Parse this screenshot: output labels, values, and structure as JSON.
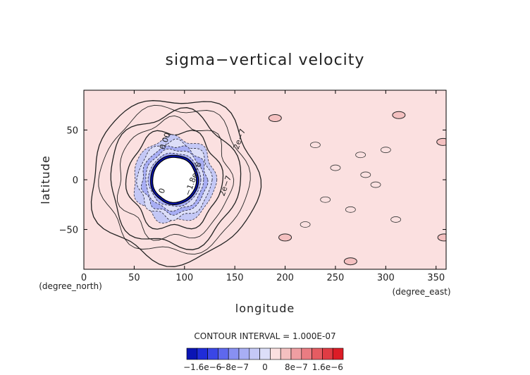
{
  "chart_data": {
    "type": "heatmap",
    "title": "sigma−vertical velocity",
    "xlabel": "longitude",
    "ylabel": "latitude",
    "xunit": "(degree_east)",
    "yunit": "(degree_north)",
    "xlim": [
      0,
      360
    ],
    "ylim": [
      -90,
      90
    ],
    "xticks": [
      0,
      50,
      100,
      150,
      200,
      250,
      300,
      350
    ],
    "yticks": [
      -50,
      0,
      50
    ],
    "grid": false,
    "contour_interval_text": "CONTOUR INTERVAL = 1.000E-07",
    "contour_labels": [
      "2e−7",
      "2e−7",
      "0.00",
      "−1.8e−6",
      "0"
    ],
    "colorbar": {
      "tick_labels": [
        "−1.6e−6",
        "−8e−7",
        "0",
        "8e−7",
        "1.6e−6"
      ],
      "tick_values": [
        -1.6e-06,
        -8e-07,
        0,
        8e-07,
        1.6e-06
      ],
      "range": [
        -2e-06,
        2e-06
      ],
      "colors": [
        "#0a14b4",
        "#1f2cd8",
        "#3a46e6",
        "#5e68ee",
        "#8890f2",
        "#a8aef4",
        "#c4c8f6",
        "#dcdef8",
        "#fbe0e0",
        "#f4c0c0",
        "#ef9ea2",
        "#ea7c82",
        "#e55c62",
        "#e03c44",
        "#dc1c26"
      ]
    },
    "background_value": 5e-08,
    "background_color": "#fbe0e0",
    "mask_region": {
      "lon_center": 90,
      "lat_center": 0,
      "note": "undefined values (white)"
    },
    "negative_ring": {
      "lon_center": 90,
      "lat_center": 0,
      "min_value": -1.8e-06
    },
    "positive_patches": [
      {
        "lon": 190,
        "lat": 62,
        "value": 4e-07
      },
      {
        "lon": 313,
        "lat": 65,
        "value": 4e-07
      },
      {
        "lon": 357,
        "lat": 38,
        "value": 4e-07
      },
      {
        "lon": 200,
        "lat": -58,
        "value": 4e-07
      },
      {
        "lon": 265,
        "lat": -82,
        "value": 4e-07
      },
      {
        "lon": 358,
        "lat": -58,
        "value": 4e-07
      }
    ]
  }
}
